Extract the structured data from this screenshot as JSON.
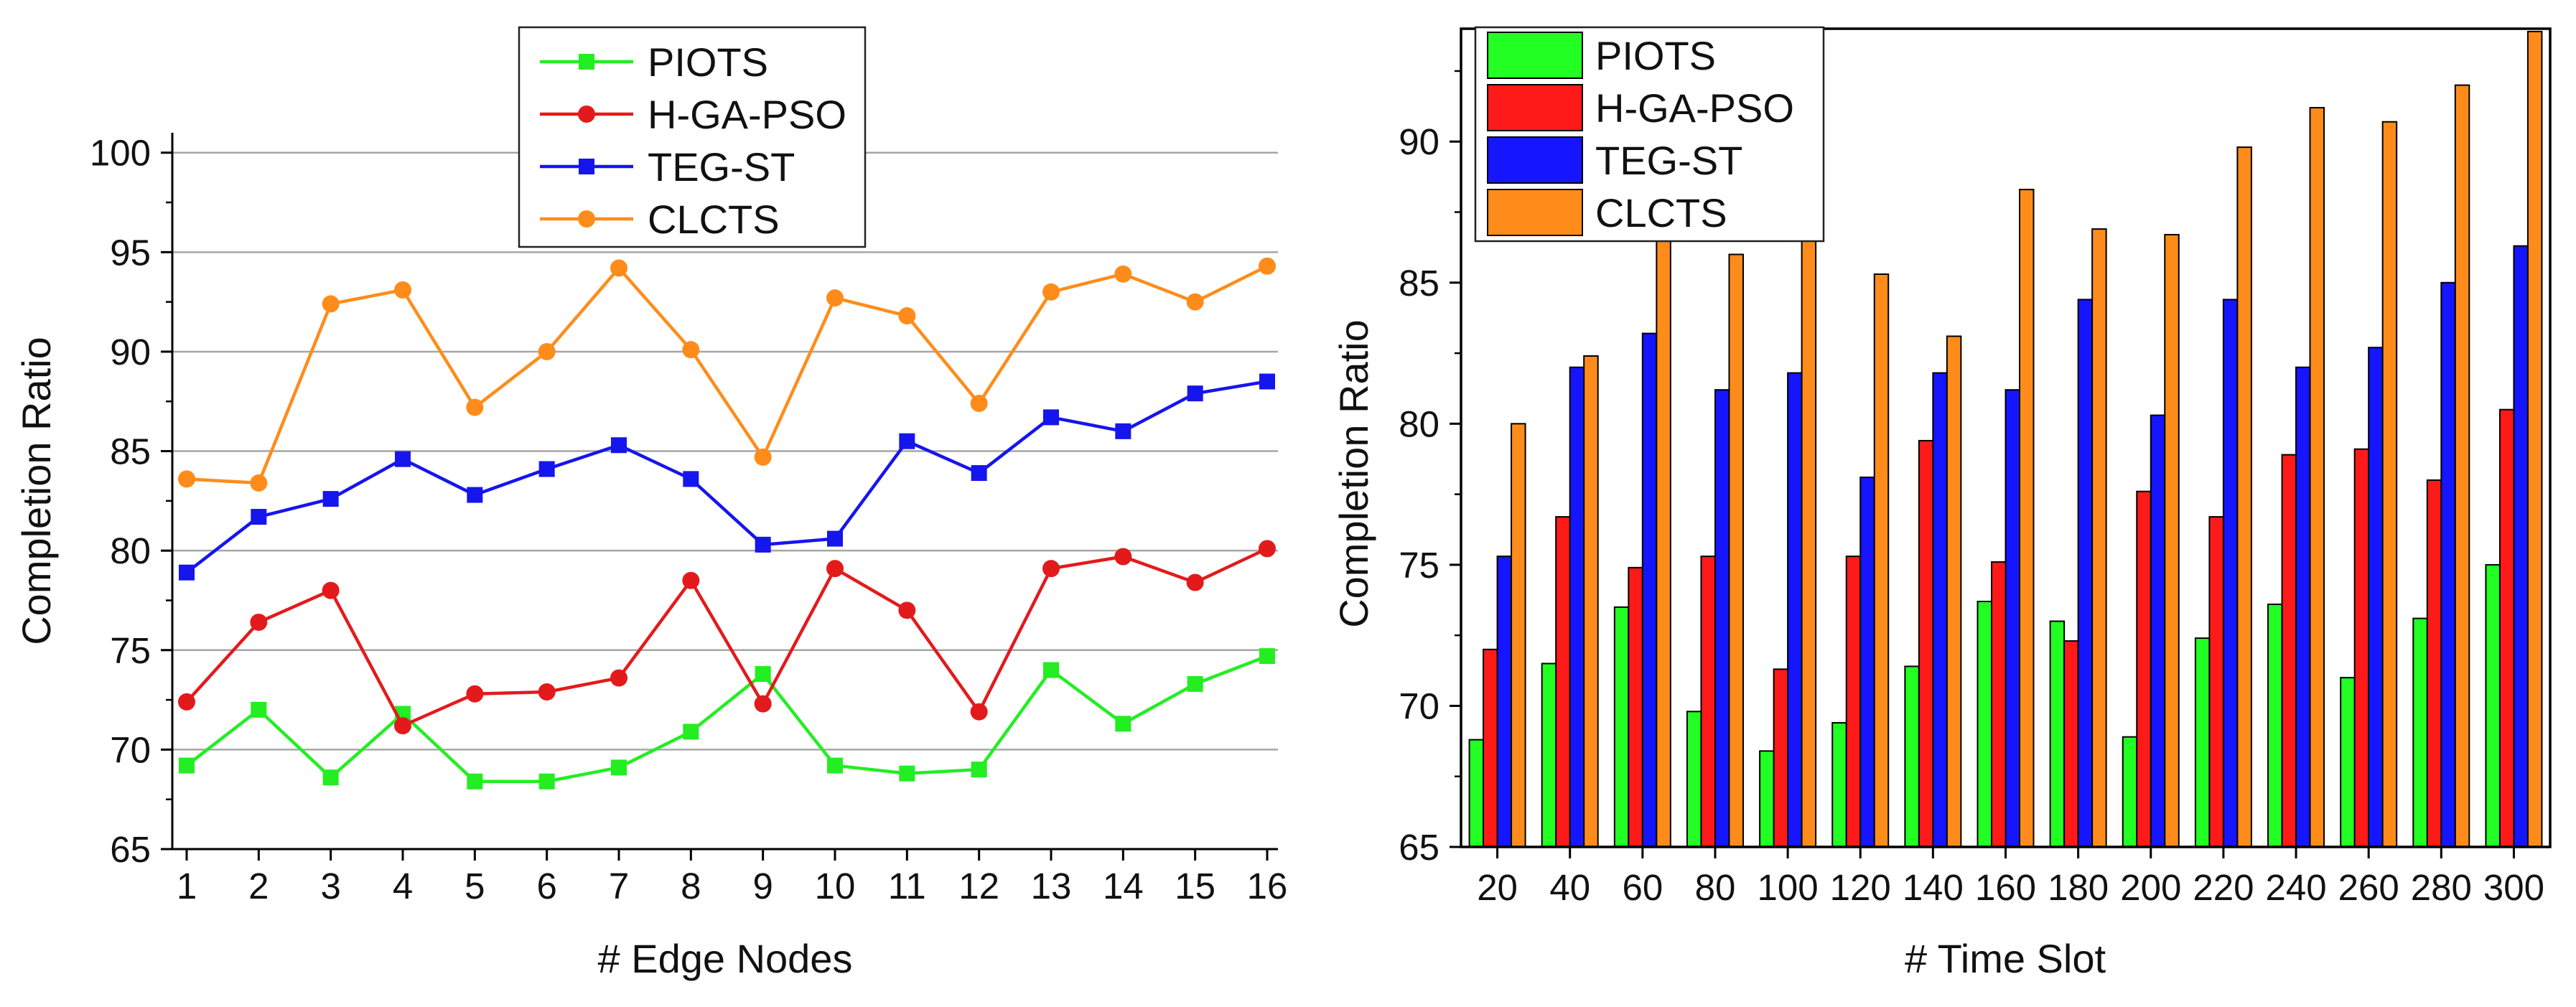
{
  "chart_data": [
    {
      "type": "line",
      "xlabel": "# Edge Nodes",
      "ylabel": "Completion Ratio",
      "x": [
        1,
        2,
        3,
        4,
        5,
        6,
        7,
        8,
        9,
        10,
        11,
        12,
        13,
        14,
        15,
        16
      ],
      "xticks": [
        "1",
        "2",
        "3",
        "4",
        "5",
        "6",
        "7",
        "8",
        "9",
        "10",
        "11",
        "12",
        "13",
        "14",
        "15",
        "16"
      ],
      "ylim": [
        65,
        101
      ],
      "yticks": [
        65,
        70,
        75,
        80,
        85,
        90,
        95,
        100
      ],
      "grid": true,
      "legend_position": "top-center",
      "series": [
        {
          "name": "PIOTS",
          "color": "#22ee22",
          "marker": "square",
          "values": [
            69.2,
            72.0,
            68.6,
            71.8,
            68.4,
            68.4,
            69.1,
            70.9,
            73.8,
            69.2,
            68.8,
            69.0,
            74.0,
            71.3,
            73.3,
            74.7
          ]
        },
        {
          "name": "H-GA-PSO",
          "color": "#e31a1c",
          "marker": "circle",
          "values": [
            72.4,
            76.4,
            78.0,
            71.2,
            72.8,
            72.9,
            73.6,
            78.5,
            72.3,
            79.1,
            77.0,
            71.9,
            79.1,
            79.7,
            78.4,
            80.1
          ]
        },
        {
          "name": "TEG-ST",
          "color": "#1515ee",
          "marker": "square",
          "values": [
            78.9,
            81.7,
            82.6,
            84.6,
            82.8,
            84.1,
            85.3,
            83.6,
            80.3,
            80.6,
            85.5,
            83.9,
            86.7,
            86.0,
            87.9,
            88.5
          ]
        },
        {
          "name": "CLCTS",
          "color": "#ff8c1a",
          "marker": "circle",
          "values": [
            83.6,
            83.4,
            92.4,
            93.1,
            87.2,
            90.0,
            94.2,
            90.1,
            84.7,
            92.7,
            91.8,
            87.4,
            93.0,
            93.9,
            92.5,
            94.3
          ]
        }
      ]
    },
    {
      "type": "bar",
      "xlabel": "# Time Slot",
      "ylabel": "Completion Ratio",
      "categories": [
        "20",
        "40",
        "60",
        "80",
        "100",
        "120",
        "140",
        "160",
        "180",
        "200",
        "220",
        "240",
        "260",
        "280",
        "300"
      ],
      "ylim": [
        65,
        94
      ],
      "yticks": [
        65,
        70,
        75,
        80,
        85,
        90
      ],
      "grid": false,
      "legend_position": "top-left",
      "series": [
        {
          "name": "PIOTS",
          "color": "#22ff22",
          "values": [
            68.8,
            71.5,
            73.5,
            69.8,
            68.4,
            69.4,
            71.4,
            73.7,
            73.0,
            68.9,
            72.4,
            73.6,
            71.0,
            73.1,
            75.0
          ]
        },
        {
          "name": "H-GA-PSO",
          "color": "#ff1a1a",
          "values": [
            72.0,
            76.7,
            74.9,
            75.3,
            71.3,
            75.3,
            79.4,
            75.1,
            72.3,
            77.6,
            76.7,
            78.9,
            79.1,
            78.0,
            80.5
          ]
        },
        {
          "name": "TEG-ST",
          "color": "#1515ff",
          "values": [
            75.3,
            82.0,
            83.2,
            81.2,
            81.8,
            78.1,
            81.8,
            81.2,
            84.4,
            80.3,
            84.4,
            82.0,
            82.7,
            85.0,
            86.3
          ]
        },
        {
          "name": "CLCTS",
          "color": "#ff8c1a",
          "values": [
            80.0,
            82.4,
            86.6,
            86.0,
            87.4,
            85.3,
            83.1,
            88.3,
            86.9,
            86.7,
            89.8,
            91.2,
            90.7,
            92.0,
            93.9
          ]
        }
      ]
    }
  ]
}
